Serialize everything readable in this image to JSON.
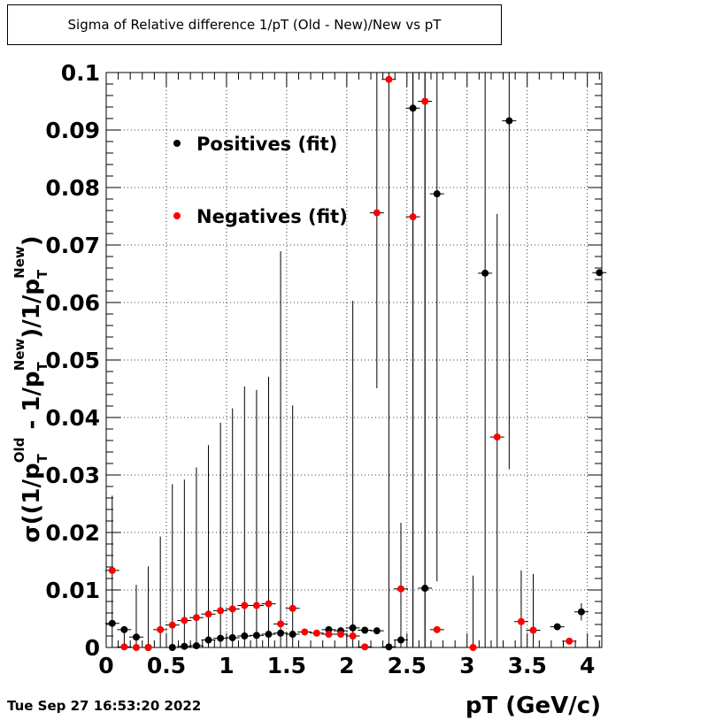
{
  "chart_data": {
    "type": "scatter",
    "title": "Sigma of Relative difference 1/pT (Old - New)/New vs pT",
    "xlabel": "pT (GeV/c)",
    "ylabel": "σ((1/p_T^Old - 1/p_T^New)/1/p_T^New)",
    "xlim": [
      0,
      4.12
    ],
    "ylim": [
      0,
      0.1
    ],
    "xticks": [
      0,
      0.5,
      1,
      1.5,
      2,
      2.5,
      3,
      3.5,
      4
    ],
    "xtick_labels": [
      "0",
      "0.5",
      "1",
      "1.5",
      "2",
      "2.5",
      "3",
      "3.5",
      "4"
    ],
    "yticks": [
      0,
      0.01,
      0.02,
      0.03,
      0.04,
      0.05,
      0.06,
      0.07,
      0.08,
      0.09,
      0.1
    ],
    "ytick_labels": [
      "0",
      "0.01",
      "0.02",
      "0.03",
      "0.04",
      "0.05",
      "0.06",
      "0.07",
      "0.08",
      "0.09",
      "0.1"
    ],
    "grid": true,
    "legend_position": "top-left",
    "series": [
      {
        "name": "Positives (fit)",
        "color": "#000000",
        "points": [
          {
            "x": 0.05,
            "y": 0.0042,
            "ylo": 0.0,
            "yhi": 0.0264
          },
          {
            "x": 0.15,
            "y": 0.0031,
            "ylo": 0.0,
            "yhi": 0.0031
          },
          {
            "x": 0.25,
            "y": 0.0018,
            "ylo": 0.0,
            "yhi": 0.0109
          },
          {
            "x": 0.35,
            "y": 0.0,
            "ylo": 0.0,
            "yhi": 0.0141
          },
          {
            "x": 0.55,
            "y": 0.0,
            "ylo": 0.0,
            "yhi": 0.0284
          },
          {
            "x": 0.65,
            "y": 0.0002,
            "ylo": 0.0,
            "yhi": 0.0292
          },
          {
            "x": 0.75,
            "y": 0.0003,
            "ylo": 0.0,
            "yhi": 0.0313
          },
          {
            "x": 0.85,
            "y": 0.0013,
            "ylo": 0.0,
            "yhi": 0.0352
          },
          {
            "x": 0.95,
            "y": 0.0016,
            "ylo": 0.0,
            "yhi": 0.0391
          },
          {
            "x": 1.05,
            "y": 0.0017,
            "ylo": 0.0,
            "yhi": 0.0416
          },
          {
            "x": 1.15,
            "y": 0.002,
            "ylo": 0.0,
            "yhi": 0.0454
          },
          {
            "x": 1.25,
            "y": 0.0021,
            "ylo": 0.0,
            "yhi": 0.0448
          },
          {
            "x": 1.35,
            "y": 0.0023,
            "ylo": 0.0,
            "yhi": 0.0471
          },
          {
            "x": 1.45,
            "y": 0.0025,
            "ylo": 0.0,
            "yhi": 0.0689
          },
          {
            "x": 1.55,
            "y": 0.0023,
            "ylo": 0.0,
            "yhi": 0.0421
          },
          {
            "x": 1.85,
            "y": 0.0031,
            "ylo": 0.0031,
            "yhi": 0.0031
          },
          {
            "x": 1.95,
            "y": 0.0029,
            "ylo": 0.0029,
            "yhi": 0.0029
          },
          {
            "x": 2.05,
            "y": 0.0034,
            "ylo": 0.0,
            "yhi": 0.0603
          },
          {
            "x": 2.15,
            "y": 0.003,
            "ylo": 0.003,
            "yhi": 0.003
          },
          {
            "x": 2.25,
            "y": 0.0029,
            "ylo": 0.0029,
            "yhi": 0.0029
          },
          {
            "x": 2.35,
            "y": 0.0001,
            "ylo": 0.0,
            "yhi": 0.0001
          },
          {
            "x": 2.45,
            "y": 0.0013,
            "ylo": 0.0,
            "yhi": 0.0013
          },
          {
            "x": 2.55,
            "y": 0.0938,
            "ylo": 0.0,
            "yhi": 0.1
          },
          {
            "x": 2.65,
            "y": 0.0103,
            "ylo": 0.0,
            "yhi": 0.1
          },
          {
            "x": 2.75,
            "y": 0.0789,
            "ylo": 0.0115,
            "yhi": 0.1
          },
          {
            "x": 3.15,
            "y": 0.0651,
            "ylo": 0.0,
            "yhi": 0.1
          },
          {
            "x": 3.35,
            "y": 0.0916,
            "ylo": 0.031,
            "yhi": 0.1
          },
          {
            "x": 3.75,
            "y": 0.0036,
            "ylo": 0.0036,
            "yhi": 0.0036
          },
          {
            "x": 3.95,
            "y": 0.0062,
            "ylo": 0.0047,
            "yhi": 0.0077
          },
          {
            "x": 4.1,
            "y": 0.0652,
            "ylo": 0.0652,
            "yhi": 0.0652
          }
        ]
      },
      {
        "name": "Negatives (fit)",
        "color": "#ff0000",
        "points": [
          {
            "x": 0.05,
            "y": 0.0134,
            "ylo": 0.0134,
            "yhi": 0.0134
          },
          {
            "x": 0.15,
            "y": 0.0001,
            "ylo": 0.0001,
            "yhi": 0.0001
          },
          {
            "x": 0.25,
            "y": 0.0,
            "ylo": 0.0,
            "yhi": 0.0
          },
          {
            "x": 0.35,
            "y": 0.0,
            "ylo": 0.0,
            "yhi": 0.0
          },
          {
            "x": 0.45,
            "y": 0.0031,
            "ylo": 0.0,
            "yhi": 0.0193
          },
          {
            "x": 0.55,
            "y": 0.0039,
            "ylo": 0.0039,
            "yhi": 0.0039
          },
          {
            "x": 0.65,
            "y": 0.0047,
            "ylo": 0.0047,
            "yhi": 0.0047
          },
          {
            "x": 0.75,
            "y": 0.0052,
            "ylo": 0.0052,
            "yhi": 0.0052
          },
          {
            "x": 0.85,
            "y": 0.0058,
            "ylo": 0.0058,
            "yhi": 0.0058
          },
          {
            "x": 0.95,
            "y": 0.0064,
            "ylo": 0.0064,
            "yhi": 0.0064
          },
          {
            "x": 1.05,
            "y": 0.0067,
            "ylo": 0.0067,
            "yhi": 0.0067
          },
          {
            "x": 1.15,
            "y": 0.0073,
            "ylo": 0.0073,
            "yhi": 0.0073
          },
          {
            "x": 1.25,
            "y": 0.0073,
            "ylo": 0.0073,
            "yhi": 0.0073
          },
          {
            "x": 1.35,
            "y": 0.0076,
            "ylo": 0.0076,
            "yhi": 0.0076
          },
          {
            "x": 1.45,
            "y": 0.0041,
            "ylo": 0.0041,
            "yhi": 0.0041
          },
          {
            "x": 1.55,
            "y": 0.0068,
            "ylo": 0.0068,
            "yhi": 0.0068
          },
          {
            "x": 1.65,
            "y": 0.0027,
            "ylo": 0.0027,
            "yhi": 0.0027
          },
          {
            "x": 1.75,
            "y": 0.0025,
            "ylo": 0.0025,
            "yhi": 0.0025
          },
          {
            "x": 1.85,
            "y": 0.0023,
            "ylo": 0.0023,
            "yhi": 0.0023
          },
          {
            "x": 1.95,
            "y": 0.0023,
            "ylo": 0.0023,
            "yhi": 0.0023
          },
          {
            "x": 2.05,
            "y": 0.002,
            "ylo": 0.002,
            "yhi": 0.002
          },
          {
            "x": 2.15,
            "y": 0.0001,
            "ylo": 0.0001,
            "yhi": 0.0001
          },
          {
            "x": 2.25,
            "y": 0.0756,
            "ylo": 0.0451,
            "yhi": 0.1
          },
          {
            "x": 2.35,
            "y": 0.0988,
            "ylo": 0.0,
            "yhi": 0.1
          },
          {
            "x": 2.45,
            "y": 0.0102,
            "ylo": 0.0,
            "yhi": 0.0217
          },
          {
            "x": 2.55,
            "y": 0.0749,
            "ylo": 0.0,
            "yhi": 0.1
          },
          {
            "x": 2.65,
            "y": 0.095,
            "ylo": 0.0,
            "yhi": 0.1
          },
          {
            "x": 2.75,
            "y": 0.0031,
            "ylo": 0.0031,
            "yhi": 0.0031
          },
          {
            "x": 3.05,
            "y": 0.0,
            "ylo": 0.0,
            "yhi": 0.0125
          },
          {
            "x": 3.25,
            "y": 0.0366,
            "ylo": 0.0,
            "yhi": 0.0754
          },
          {
            "x": 3.45,
            "y": 0.0045,
            "ylo": 0.0,
            "yhi": 0.0134
          },
          {
            "x": 3.55,
            "y": 0.003,
            "ylo": 0.0,
            "yhi": 0.0128
          },
          {
            "x": 3.85,
            "y": 0.0011,
            "ylo": 0.0011,
            "yhi": 0.0011
          }
        ]
      }
    ]
  },
  "footer": {
    "timestamp": "Tue Sep 27 16:53:20 2022"
  }
}
